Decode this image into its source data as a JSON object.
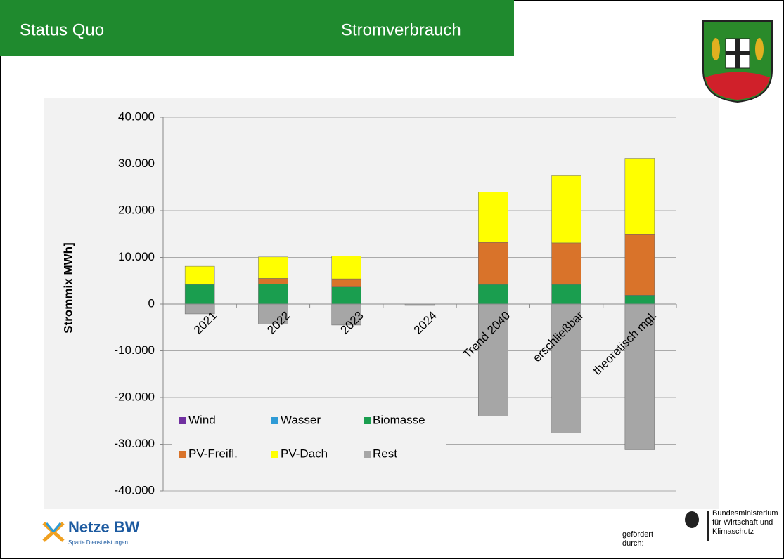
{
  "header": {
    "left": "Status Quo",
    "right": "Stromverbrauch"
  },
  "footer": {
    "logo": "Netze BW",
    "logo_sub": "Sparte Dienstleistungen",
    "funded": "gefördert durch:",
    "ministry": "Bundesministerium für Wirtschaft und Klimaschutz"
  },
  "chart_data": {
    "type": "stacked_bar",
    "y_label": "Strommix MWh]",
    "categories": [
      "2021",
      "2022",
      "2023",
      "2024",
      "Trend 2040",
      "erschließbar",
      "theoretisch mgl."
    ],
    "series": [
      {
        "name": "Wind",
        "color": "#7030a0",
        "values": [
          0,
          0,
          0,
          0,
          0,
          0,
          0
        ]
      },
      {
        "name": "Wasser",
        "color": "#2e9bd6",
        "values": [
          0,
          0,
          0,
          0,
          0,
          0,
          0
        ]
      },
      {
        "name": "Biomasse",
        "color": "#1a9e4f",
        "values": [
          4200,
          4300,
          3800,
          0,
          4200,
          4200,
          1900
        ]
      },
      {
        "name": "PV-Freifl.",
        "color": "#d9732a",
        "values": [
          0,
          1200,
          1600,
          0,
          9000,
          8900,
          13100
        ]
      },
      {
        "name": "PV-Dach",
        "color": "#ffff00",
        "values": [
          3900,
          4600,
          4900,
          0,
          10800,
          14500,
          16200
        ]
      },
      {
        "name": "Rest",
        "color": "#a6a6a6",
        "values": [
          -2100,
          -4300,
          -4500,
          -300,
          -24000,
          -27600,
          -31200
        ]
      }
    ],
    "ylim": [
      -40000,
      40000
    ],
    "yticks": [
      {
        "value": -40000,
        "label": "-40.000"
      },
      {
        "value": -30000,
        "label": "-30.000"
      },
      {
        "value": -20000,
        "label": "-20.000"
      },
      {
        "value": -10000,
        "label": "-10.000"
      },
      0,
      {
        "value": 10000,
        "label": "10.000"
      },
      {
        "value": 20000,
        "label": "20.000"
      },
      {
        "value": 30000,
        "label": "30.000"
      },
      {
        "value": 40000,
        "label": "40.000"
      }
    ],
    "grid": true
  }
}
